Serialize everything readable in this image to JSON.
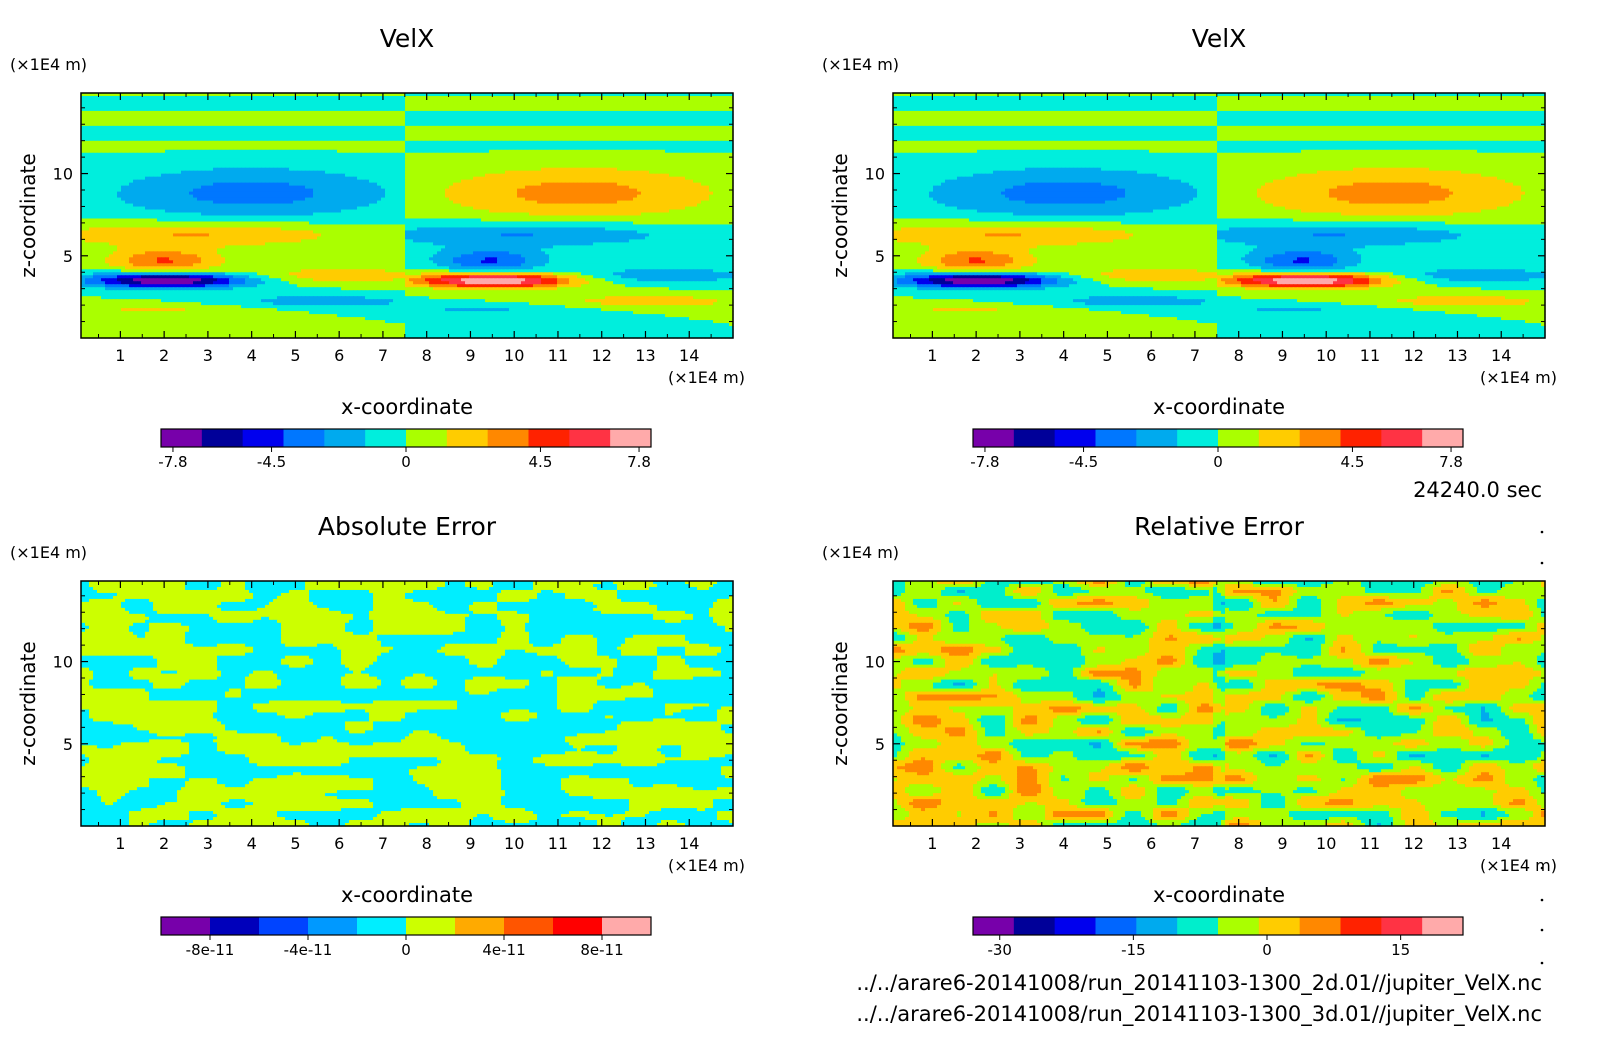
{
  "time_label": "24240.0 sec",
  "files": [
    "../../arare6-20141008/run_20141103-1300_2d.01//jupiter_VelX.nc",
    "../../arare6-20141008/run_20141103-1300_3d.01//jupiter_VelX.nc"
  ],
  "chart_data": [
    {
      "type": "heatmap",
      "title": "VelX",
      "xlabel": "x-coordinate",
      "ylabel": "z-coordinate",
      "x_unit": "(×1E4 m)",
      "y_unit": "(×1E4 m)",
      "xlim": [
        0.1,
        15.0
      ],
      "ylim": [
        0.0,
        14.9
      ],
      "x_ticks": [
        "1",
        "2",
        "3",
        "4",
        "5",
        "6",
        "7",
        "8",
        "9",
        "10",
        "11",
        "12",
        "13",
        "14"
      ],
      "y_ticks": [
        "5",
        "10"
      ],
      "colorbar": {
        "colors": [
          "#7700aa",
          "#000099",
          "#0000ee",
          "#0077ff",
          "#00aaee",
          "#00eedd",
          "#aaff00",
          "#ffcc00",
          "#ff8800",
          "#ff2200",
          "#ff3344",
          "#ffaaaa"
        ],
        "tick_labels": [
          "-7.8",
          "-4.5",
          "0",
          "4.5",
          "7.8"
        ],
        "tick_values": [
          -7.8,
          -4.5,
          0,
          4.5,
          7.8
        ],
        "range": [
          -8.2,
          8.2
        ]
      },
      "pattern": "velx"
    },
    {
      "type": "heatmap",
      "title": "VelX",
      "xlabel": "x-coordinate",
      "ylabel": "z-coordinate",
      "x_unit": "(×1E4 m)",
      "y_unit": "(×1E4 m)",
      "xlim": [
        0.1,
        15.0
      ],
      "ylim": [
        0.0,
        14.9
      ],
      "x_ticks": [
        "1",
        "2",
        "3",
        "4",
        "5",
        "6",
        "7",
        "8",
        "9",
        "10",
        "11",
        "12",
        "13",
        "14"
      ],
      "y_ticks": [
        "5",
        "10"
      ],
      "colorbar": {
        "colors": [
          "#7700aa",
          "#000099",
          "#0000ee",
          "#0077ff",
          "#00aaee",
          "#00eedd",
          "#aaff00",
          "#ffcc00",
          "#ff8800",
          "#ff2200",
          "#ff3344",
          "#ffaaaa"
        ],
        "tick_labels": [
          "-7.8",
          "-4.5",
          "0",
          "4.5",
          "7.8"
        ],
        "tick_values": [
          -7.8,
          -4.5,
          0,
          4.5,
          7.8
        ],
        "range": [
          -8.2,
          8.2
        ]
      },
      "pattern": "velx"
    },
    {
      "type": "heatmap",
      "title": "Absolute Error",
      "xlabel": "x-coordinate",
      "ylabel": "z-coordinate",
      "x_unit": "(×1E4 m)",
      "y_unit": "(×1E4 m)",
      "xlim": [
        0.1,
        15.0
      ],
      "ylim": [
        0.0,
        14.9
      ],
      "x_ticks": [
        "1",
        "2",
        "3",
        "4",
        "5",
        "6",
        "7",
        "8",
        "9",
        "10",
        "11",
        "12",
        "13",
        "14"
      ],
      "y_ticks": [
        "5",
        "10"
      ],
      "colorbar": {
        "colors": [
          "#7700aa",
          "#0000bb",
          "#0044ff",
          "#0099ff",
          "#00eeff",
          "#ccff00",
          "#ffaa00",
          "#ff5500",
          "#ff0000",
          "#ffaaaa"
        ],
        "tick_labels": [
          "-8e-11",
          "-4e-11",
          "0",
          "4e-11",
          "8e-11"
        ],
        "tick_values": [
          -8e-11,
          -4e-11,
          0,
          4e-11,
          8e-11
        ],
        "range": [
          -1e-10,
          1e-10
        ]
      },
      "pattern": "abs"
    },
    {
      "type": "heatmap",
      "title": "Relative Error",
      "xlabel": "x-coordinate",
      "ylabel": "z-coordinate",
      "x_unit": "(×1E4 m)",
      "y_unit": "(×1E4 m)",
      "xlim": [
        0.1,
        15.0
      ],
      "ylim": [
        0.0,
        14.9
      ],
      "x_ticks": [
        "1",
        "2",
        "3",
        "4",
        "5",
        "6",
        "7",
        "8",
        "9",
        "10",
        "11",
        "12",
        "13",
        "14"
      ],
      "y_ticks": [
        "5",
        "10"
      ],
      "colorbar": {
        "colors": [
          "#7700aa",
          "#000099",
          "#0000ee",
          "#0066ff",
          "#00aaee",
          "#00eecc",
          "#aaff00",
          "#ffcc00",
          "#ff8800",
          "#ff2200",
          "#ff3344",
          "#ffaaaa"
        ],
        "tick_labels": [
          "-30",
          "-15",
          "0",
          "15"
        ],
        "tick_values": [
          -30,
          -15,
          0,
          15
        ],
        "range": [
          -33,
          22
        ]
      },
      "pattern": "rel"
    }
  ]
}
